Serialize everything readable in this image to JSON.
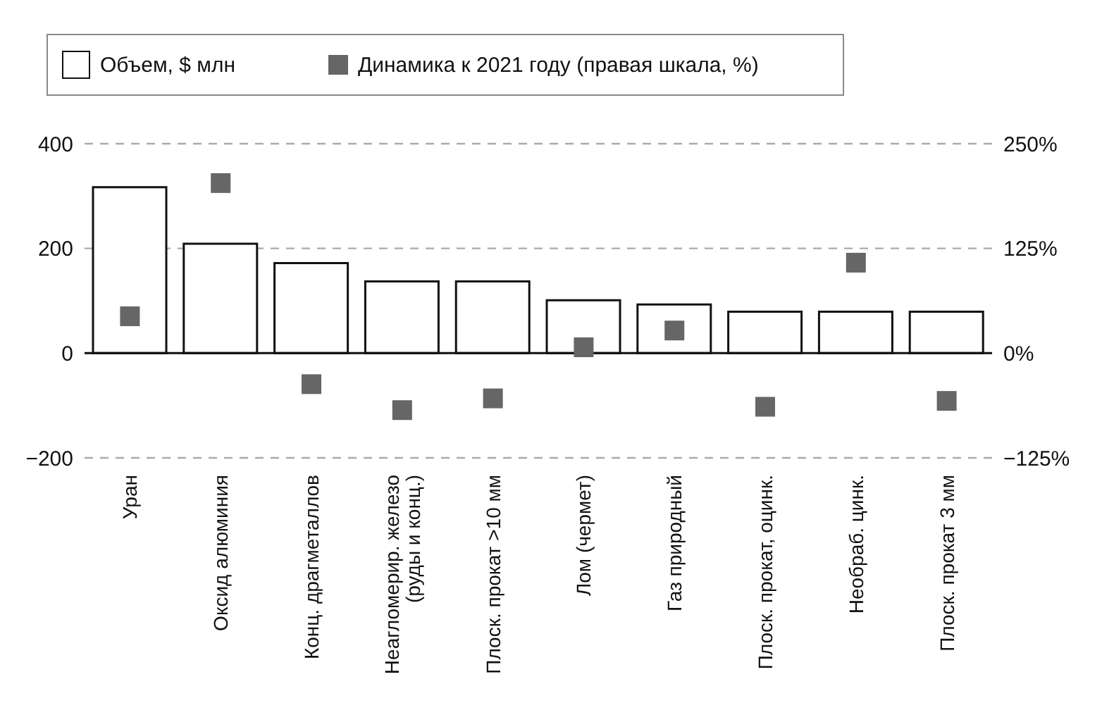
{
  "chart_data": {
    "type": "bar",
    "categories": [
      "Уран",
      "Оксид алюминия",
      "Конц. драгметаллов",
      "Неагломерир. железо (руды и конц.)",
      "Плоск. прокат >10 мм",
      "Лом (чермет)",
      "Газ природный",
      "Плоск. прокат, оцинк.",
      "Необраб. цинк.",
      "Плоск. прокат 3 мм"
    ],
    "series": [
      {
        "name": "Объем, $ млн",
        "color": "#ffffff",
        "values": [
          317,
          209,
          172,
          137,
          137,
          101,
          93,
          79,
          79,
          79
        ]
      },
      {
        "name": "Динамика к 2021 году (правая шкала, %)",
        "type": "scatter",
        "axis": "y2",
        "color": "#666666",
        "values": [
          44,
          203,
          -37,
          -68,
          -54,
          7,
          27,
          -64,
          108,
          -57
        ]
      }
    ],
    "ylim": [
      -200,
      400
    ],
    "yticks": [
      {
        "value": -200,
        "label": "−200"
      },
      0,
      200,
      400
    ],
    "y2lim": [
      -125,
      250
    ],
    "y2ticks": [
      {
        "value": -125,
        "label": "−125%"
      },
      {
        "value": 0,
        "label": "0%"
      },
      {
        "value": 125,
        "label": "125%"
      },
      {
        "value": 250,
        "label": "250%"
      }
    ],
    "grid": "y",
    "legend": "top",
    "marker": "square"
  }
}
